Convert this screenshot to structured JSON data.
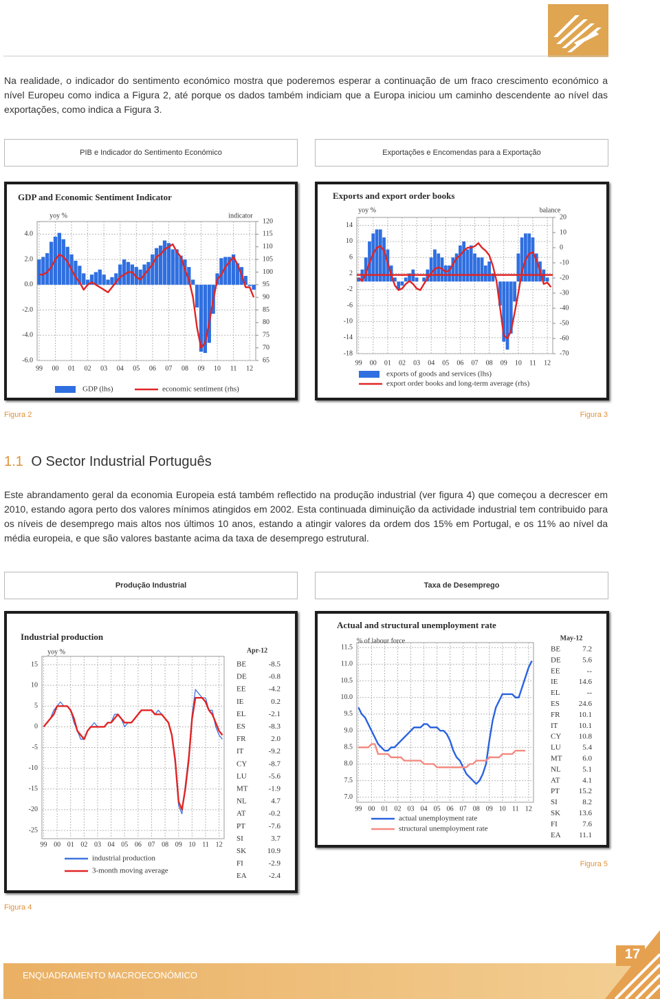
{
  "intro": "Na realidade, o indicador do sentimento económico mostra que poderemos esperar a continuação de um fraco crescimento económico a nível Europeu como indica a Figura 2, até porque os dados também indiciam que a Europa iniciou um caminho descendente ao nível das exportações, como indica a Figura 3.",
  "panels": [
    "PIB e Indicador do Sentimento Económico",
    "Exportações e Encomendas para a Exportação",
    "Produção Industrial",
    "Taxa de Desemprego"
  ],
  "captions": [
    "Figura 2",
    "Figura 3",
    "Figura 4",
    "Figura 5"
  ],
  "section": {
    "number": "1.1",
    "title": "O Sector Industrial Português"
  },
  "body": "Este abrandamento geral da economia Europeia está também reflectido na produção industrial (ver figura 4) que começou a decrescer em 2010, estando agora perto dos valores mínimos atingidos em 2002. Esta continuada diminuição da actividade industrial tem contribuido para os níveis de desemprego mais altos nos últimos 10 anos, estando a atingir valores da ordem dos 15% em Portugal, e os 11% ao nível da média europeia, e que são valores bastante acima da taxa de desemprego estrutural.",
  "footer": {
    "label": "ENQUADRAMENTO MACROECONÓMICO",
    "page": 17
  },
  "chart_data": [
    {
      "type": "combo",
      "title": "GDP and Economic Sentiment Indicator",
      "ylabel": "yoy %",
      "y2label": "indicator",
      "categories": [
        "99",
        null,
        null,
        null,
        "00",
        null,
        null,
        null,
        "01",
        null,
        null,
        null,
        "02",
        null,
        null,
        null,
        "03",
        null,
        null,
        null,
        "04",
        null,
        null,
        null,
        "05",
        null,
        null,
        null,
        "06",
        null,
        null,
        null,
        "07",
        null,
        null,
        null,
        "08",
        null,
        null,
        null,
        "09",
        null,
        null,
        null,
        "10",
        null,
        null,
        null,
        "11",
        null,
        null,
        null,
        "12",
        null
      ],
      "series": [
        {
          "name": "GDP (lhs)",
          "type": "bar",
          "color": "#2f6fe0",
          "values": [
            2.0,
            2.2,
            2.5,
            3.4,
            3.8,
            4.1,
            3.6,
            3.0,
            2.4,
            1.9,
            1.5,
            0.9,
            0.4,
            0.8,
            1.0,
            1.2,
            0.8,
            0.4,
            0.6,
            0.9,
            1.6,
            2.0,
            1.8,
            1.6,
            1.4,
            1.2,
            1.6,
            1.8,
            2.4,
            2.9,
            3.1,
            3.5,
            3.3,
            2.8,
            2.8,
            2.3,
            2.0,
            1.4,
            0.4,
            -1.8,
            -5.3,
            -5.4,
            -4.6,
            -2.3,
            0.9,
            2.1,
            2.2,
            2.2,
            2.4,
            1.7,
            1.4,
            0.7,
            -0.1,
            -0.4
          ]
        },
        {
          "name": "economic sentiment (rhs)",
          "type": "line",
          "axis": "y2",
          "color": "#e02424",
          "values": [
            99,
            99,
            100,
            102,
            105,
            107,
            106,
            104,
            101,
            98,
            96,
            93,
            95,
            96,
            95,
            94,
            93,
            92,
            94,
            96,
            98,
            99,
            100,
            100,
            98,
            97,
            99,
            101,
            103,
            106,
            107,
            109,
            110,
            111,
            108,
            106,
            101,
            97,
            90,
            78,
            70,
            72,
            80,
            89,
            97,
            99,
            102,
            104,
            106,
            103,
            99,
            94,
            94,
            90
          ]
        }
      ],
      "ylim": [
        -6,
        5
      ],
      "yticks": [
        {
          "value": -6,
          "label": "-6.0"
        },
        {
          "value": -4,
          "label": "-4.0"
        },
        {
          "value": -2,
          "label": "-2.0"
        },
        {
          "value": 0,
          "label": "0.0"
        },
        {
          "value": 2,
          "label": "2.0"
        },
        {
          "value": 4,
          "label": "4.0"
        }
      ],
      "y2lim": [
        65,
        120
      ],
      "y2ticks": [
        65,
        70,
        75,
        80,
        85,
        90,
        95,
        100,
        105,
        110,
        115,
        120
      ],
      "grid": true
    },
    {
      "type": "combo",
      "title": "Exports and export order books",
      "ylabel": "yoy %",
      "y2label": "balance",
      "categories": [
        "99",
        null,
        null,
        null,
        "00",
        null,
        null,
        null,
        "01",
        null,
        null,
        null,
        "02",
        null,
        null,
        null,
        "03",
        null,
        null,
        null,
        "04",
        null,
        null,
        null,
        "05",
        null,
        null,
        null,
        "06",
        null,
        null,
        null,
        "07",
        null,
        null,
        null,
        "08",
        null,
        null,
        null,
        "09",
        null,
        null,
        null,
        "10",
        null,
        null,
        null,
        "11",
        null,
        null,
        null,
        "12",
        null
      ],
      "series": [
        {
          "name": "exports of goods and services (lhs)",
          "type": "bar",
          "color": "#2f6fe0",
          "values": [
            1,
            3,
            6,
            10,
            12,
            13,
            13,
            11,
            8,
            4,
            1,
            -2,
            -1,
            1,
            2,
            3,
            1,
            0,
            1,
            3,
            6,
            8,
            7,
            6,
            4,
            4,
            6,
            7,
            9,
            10,
            8,
            9,
            7,
            6,
            6,
            4,
            5,
            2,
            0,
            -6,
            -15,
            -17,
            -13,
            -5,
            7,
            11,
            12,
            12,
            11,
            7,
            5,
            3,
            1,
            0
          ]
        },
        {
          "name": "export order books and long-term average (rhs)",
          "type": "line",
          "axis": "y2",
          "color": "#e02424",
          "values": [
            -20,
            -22,
            -17,
            -10,
            -4,
            0,
            1,
            -2,
            -10,
            -18,
            -25,
            -28,
            -27,
            -24,
            -22,
            -24,
            -27,
            -28,
            -24,
            -20,
            -17,
            -14,
            -13,
            -14,
            -16,
            -15,
            -11,
            -7,
            -5,
            -2,
            0,
            0,
            1,
            3,
            0,
            -2,
            -5,
            -12,
            -22,
            -40,
            -58,
            -60,
            -55,
            -43,
            -30,
            -16,
            -8,
            -4,
            -3,
            -8,
            -15,
            -24,
            -23,
            -26
          ]
        }
      ],
      "long_term_average": -18,
      "ylim": [
        -18,
        16
      ],
      "yticks": [
        -18,
        -14,
        -10,
        -6,
        -2,
        2,
        6,
        10,
        14
      ],
      "y2lim": [
        -70,
        20
      ],
      "y2ticks": [
        -70,
        -60,
        -50,
        -40,
        -30,
        -20,
        -10,
        0,
        10,
        20
      ],
      "grid": true
    },
    {
      "type": "line",
      "title": "Industrial production",
      "ylabel": "yoy %",
      "categories": [
        "99",
        null,
        null,
        null,
        "00",
        null,
        null,
        null,
        "01",
        null,
        null,
        null,
        "02",
        null,
        null,
        null,
        "03",
        null,
        null,
        null,
        "04",
        null,
        null,
        null,
        "05",
        null,
        null,
        null,
        "06",
        null,
        null,
        null,
        "07",
        null,
        null,
        null,
        "08",
        null,
        null,
        null,
        "09",
        null,
        null,
        null,
        "10",
        null,
        null,
        null,
        "11",
        null,
        null,
        null,
        "12",
        null
      ],
      "series": [
        {
          "name": "industrial production",
          "color": "#3d73dd",
          "values": [
            0,
            1,
            2,
            4,
            5,
            6,
            5,
            5,
            4,
            1,
            -1,
            -3,
            -3,
            -1,
            0,
            1,
            0,
            0,
            0,
            1,
            1,
            3,
            3,
            2,
            0,
            1,
            1,
            2,
            3,
            4,
            4,
            4,
            4,
            3,
            4,
            3,
            2,
            1,
            -2,
            -9,
            -19,
            -21,
            -14,
            -7,
            3,
            9,
            8,
            7,
            7,
            4,
            4,
            0,
            -2,
            -3
          ]
        },
        {
          "name": "3-month moving average",
          "color": "#e02424",
          "values": [
            0,
            1,
            2,
            3,
            5,
            5,
            5,
            5,
            4,
            2,
            -1,
            -2,
            -3,
            -1,
            0,
            0,
            0,
            0,
            0,
            1,
            1,
            2,
            3,
            2,
            1,
            1,
            1,
            2,
            3,
            4,
            4,
            4,
            4,
            3,
            3,
            3,
            2,
            1,
            -2,
            -8,
            -18,
            -20,
            -15,
            -8,
            2,
            7,
            7,
            7,
            6,
            4,
            3,
            1,
            -1,
            -2
          ]
        }
      ],
      "ylim": [
        -27,
        17
      ],
      "yticks": [
        -25,
        -20,
        -15,
        -10,
        -5,
        0,
        5,
        10,
        15
      ],
      "grid": true,
      "table": {
        "date": "Apr-12",
        "rows": [
          [
            "BE",
            "-8.5"
          ],
          [
            "DE",
            "-0.8"
          ],
          [
            "EE",
            "-4.2"
          ],
          [
            "IE",
            "0.2"
          ],
          [
            "EL",
            "-2.1"
          ],
          [
            "ES",
            "-8.3"
          ],
          [
            "FR",
            "2.0"
          ],
          [
            "IT",
            "-9.2"
          ],
          [
            "CY",
            "-8.7"
          ],
          [
            "LU",
            "-5.6"
          ],
          [
            "MT",
            "-1.9"
          ],
          [
            "NL",
            "4.7"
          ],
          [
            "AT",
            "-0.2"
          ],
          [
            "PT",
            "-7.6"
          ],
          [
            "SI",
            "3.7"
          ],
          [
            "SK",
            "10.9"
          ],
          [
            "FI",
            "-2.9"
          ],
          [
            "EA",
            "-2.4"
          ]
        ]
      }
    },
    {
      "type": "line",
      "title": "Actual and structural unemployment rate",
      "ylabel": "% of labour force",
      "categories": [
        "99",
        null,
        null,
        null,
        "00",
        null,
        null,
        null,
        "01",
        null,
        null,
        null,
        "02",
        null,
        null,
        null,
        "03",
        null,
        null,
        null,
        "04",
        null,
        null,
        null,
        "05",
        null,
        null,
        null,
        "06",
        null,
        null,
        null,
        "07",
        null,
        null,
        null,
        "08",
        null,
        null,
        null,
        "09",
        null,
        null,
        null,
        "10",
        null,
        null,
        null,
        "11",
        null,
        null,
        null,
        "12",
        null
      ],
      "series": [
        {
          "name": "actual unemployment rate",
          "color": "#2a62e0",
          "values": [
            9.7,
            9.5,
            9.4,
            9.2,
            9.0,
            8.8,
            8.6,
            8.5,
            8.4,
            8.4,
            8.5,
            8.5,
            8.6,
            8.7,
            8.8,
            8.9,
            9.0,
            9.1,
            9.1,
            9.1,
            9.2,
            9.2,
            9.1,
            9.1,
            9.1,
            9.0,
            9.0,
            8.9,
            8.7,
            8.4,
            8.2,
            8.1,
            7.9,
            7.7,
            7.6,
            7.5,
            7.4,
            7.5,
            7.7,
            8.0,
            8.7,
            9.3,
            9.7,
            9.9,
            10.1,
            10.1,
            10.1,
            10.1,
            10.0,
            10.0,
            10.3,
            10.6,
            10.9,
            11.1
          ]
        },
        {
          "name": "structural unemployment rate",
          "color": "#f28a80",
          "values": [
            8.5,
            8.5,
            8.5,
            8.5,
            8.6,
            8.6,
            8.3,
            8.3,
            8.3,
            8.3,
            8.2,
            8.2,
            8.2,
            8.2,
            8.1,
            8.1,
            8.1,
            8.1,
            8.1,
            8.1,
            8.0,
            8.0,
            8.0,
            8.0,
            7.9,
            7.9,
            7.9,
            7.9,
            7.9,
            7.9,
            7.9,
            7.9,
            7.9,
            7.9,
            8.0,
            8.0,
            8.1,
            8.1,
            8.1,
            8.1,
            8.2,
            8.2,
            8.2,
            8.2,
            8.3,
            8.3,
            8.3,
            8.3,
            8.4,
            8.4,
            8.4,
            8.4,
            null,
            null
          ]
        }
      ],
      "ylim": [
        6.85,
        11.65
      ],
      "yticks": [
        {
          "value": 7.0,
          "label": "7.0"
        },
        7.5,
        {
          "value": 8.0,
          "label": "8.0"
        },
        8.5,
        {
          "value": 9.0,
          "label": "9.0"
        },
        9.5,
        {
          "value": 10.0,
          "label": "10.0"
        },
        10.5,
        {
          "value": 11.0,
          "label": "11.0"
        },
        11.5
      ],
      "grid": true,
      "table": {
        "date": "May-12",
        "rows": [
          [
            "BE",
            "7.2"
          ],
          [
            "DE",
            "5.6"
          ],
          [
            "EE",
            "--"
          ],
          [
            "IE",
            "14.6"
          ],
          [
            "EL",
            "--"
          ],
          [
            "ES",
            "24.6"
          ],
          [
            "FR",
            "10.1"
          ],
          [
            "IT",
            "10.1"
          ],
          [
            "CY",
            "10.8"
          ],
          [
            "LU",
            "5.4"
          ],
          [
            "MT",
            "6.0"
          ],
          [
            "NL",
            "5.1"
          ],
          [
            "AT",
            "4.1"
          ],
          [
            "PT",
            "15.2"
          ],
          [
            "SI",
            "8.2"
          ],
          [
            "SK",
            "13.6"
          ],
          [
            "FI",
            "7.6"
          ],
          [
            "EA",
            "11.1"
          ]
        ]
      }
    }
  ]
}
